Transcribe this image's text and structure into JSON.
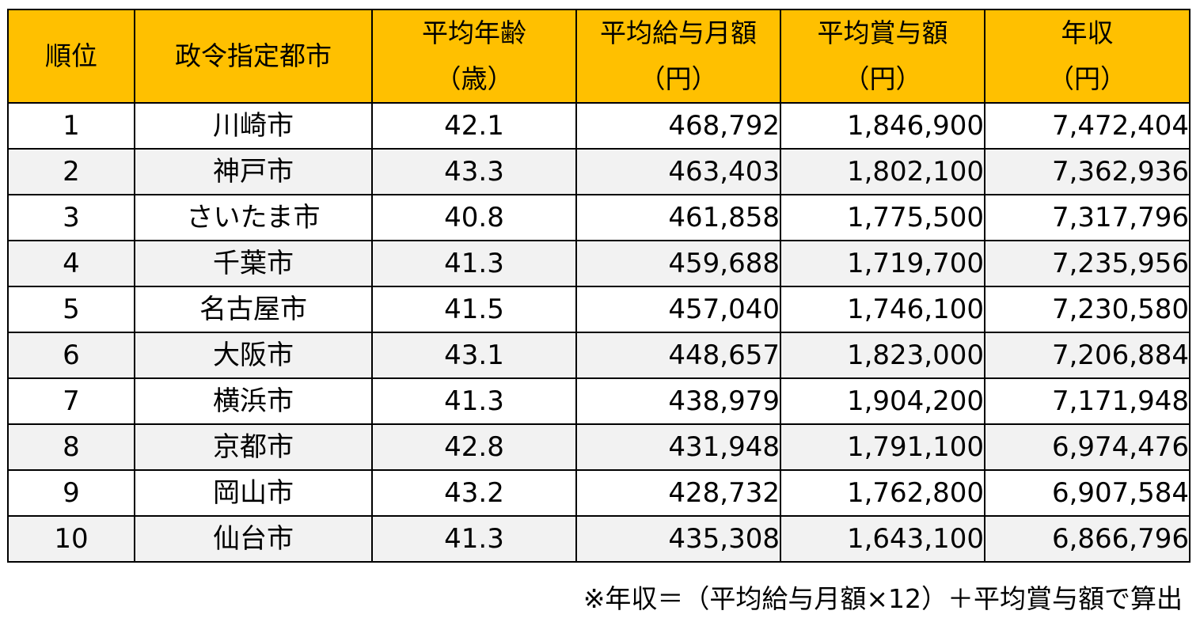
{
  "table": {
    "headers": [
      {
        "line1": "順位",
        "line2": ""
      },
      {
        "line1": "政令指定都市",
        "line2": ""
      },
      {
        "line1": "平均年齢",
        "line2": "（歳）"
      },
      {
        "line1": "平均給与月額",
        "line2": "（円）"
      },
      {
        "line1": "平均賞与額",
        "line2": "（円）"
      },
      {
        "line1": "年収",
        "line2": "（円）"
      }
    ],
    "rows": [
      {
        "rank": "1",
        "city": "川崎市",
        "age": "42.1",
        "monthly": "468,792",
        "bonus": "1,846,900",
        "annual": "7,472,404"
      },
      {
        "rank": "2",
        "city": "神戸市",
        "age": "43.3",
        "monthly": "463,403",
        "bonus": "1,802,100",
        "annual": "7,362,936"
      },
      {
        "rank": "3",
        "city": "さいたま市",
        "age": "40.8",
        "monthly": "461,858",
        "bonus": "1,775,500",
        "annual": "7,317,796"
      },
      {
        "rank": "4",
        "city": "千葉市",
        "age": "41.3",
        "monthly": "459,688",
        "bonus": "1,719,700",
        "annual": "7,235,956"
      },
      {
        "rank": "5",
        "city": "名古屋市",
        "age": "41.5",
        "monthly": "457,040",
        "bonus": "1,746,100",
        "annual": "7,230,580"
      },
      {
        "rank": "6",
        "city": "大阪市",
        "age": "43.1",
        "monthly": "448,657",
        "bonus": "1,823,000",
        "annual": "7,206,884"
      },
      {
        "rank": "7",
        "city": "横浜市",
        "age": "41.3",
        "monthly": "438,979",
        "bonus": "1,904,200",
        "annual": "7,171,948"
      },
      {
        "rank": "8",
        "city": "京都市",
        "age": "42.8",
        "monthly": "431,948",
        "bonus": "1,791,100",
        "annual": "6,974,476"
      },
      {
        "rank": "9",
        "city": "岡山市",
        "age": "43.2",
        "monthly": "428,732",
        "bonus": "1,762,800",
        "annual": "6,907,584"
      },
      {
        "rank": "10",
        "city": "仙台市",
        "age": "41.3",
        "monthly": "435,308",
        "bonus": "1,643,100",
        "annual": "6,866,796"
      }
    ]
  },
  "footnote": "※年収＝（平均給与月額×12）＋平均賞与額で算出",
  "colors": {
    "header_bg": "#ffc000",
    "alt_row_bg": "#f2f2f2",
    "border": "#000000"
  }
}
